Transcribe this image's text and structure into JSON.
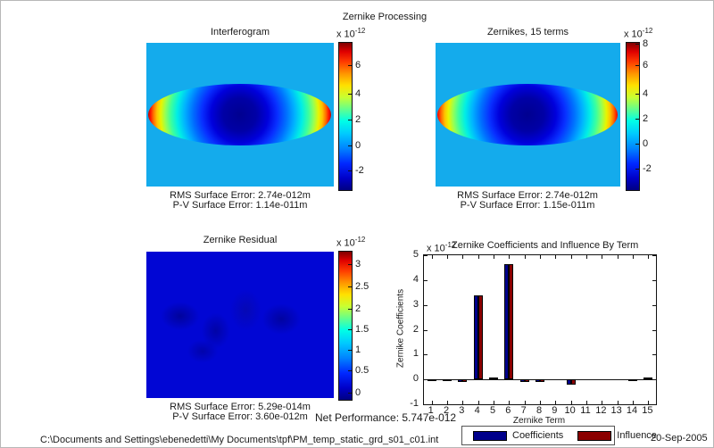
{
  "figure": {
    "title": "Zernike Processing",
    "net_performance": "Net Performance: 5.747e-012",
    "file_path": "C:\\Documents and Settings\\ebenedetti\\My Documents\\tpf\\PM_temp_static_grd_s01_c01.int",
    "date": "20-Sep-2005"
  },
  "colors": {
    "map_background": "#14abec",
    "residual_blue": "#0106d4",
    "coefficients_bar": "#00008b",
    "influence_bar": "#8b0000"
  },
  "panels": {
    "interferogram": {
      "title": "Interferogram",
      "rms": "RMS Surface Error: 2.74e-012m",
      "pv": "P-V Surface Error: 1.14e-011m",
      "colorbar": {
        "exp_base": "x 10",
        "exp_power": "-12",
        "ticks": [
          {
            "label": "6",
            "pos": 16
          },
          {
            "label": "4",
            "pos": 35
          },
          {
            "label": "2",
            "pos": 53
          },
          {
            "label": "0",
            "pos": 70
          },
          {
            "label": "-2",
            "pos": 87
          }
        ]
      }
    },
    "zernikes": {
      "title": "Zernikes, 15 terms",
      "rms": "RMS Surface Error: 2.74e-012m",
      "pv": "P-V Surface Error: 1.15e-011m",
      "colorbar": {
        "exp_base": "x 10",
        "exp_power": "-12",
        "ticks": [
          {
            "label": "8",
            "pos": 1
          },
          {
            "label": "6",
            "pos": 16
          },
          {
            "label": "4",
            "pos": 35
          },
          {
            "label": "2",
            "pos": 52
          },
          {
            "label": "0",
            "pos": 69
          },
          {
            "label": "-2",
            "pos": 86
          }
        ]
      }
    },
    "residual": {
      "title": "Zernike Residual",
      "rms": "RMS Surface Error: 5.29e-014m",
      "pv": "P-V Surface Error: 3.60e-012m",
      "colorbar": {
        "exp_base": "x 10",
        "exp_power": "-12",
        "ticks": [
          {
            "label": "3",
            "pos": 9
          },
          {
            "label": "2.5",
            "pos": 24
          },
          {
            "label": "2",
            "pos": 39
          },
          {
            "label": "1.5",
            "pos": 53
          },
          {
            "label": "1",
            "pos": 67
          },
          {
            "label": "0.5",
            "pos": 81
          },
          {
            "label": "0",
            "pos": 96
          }
        ]
      }
    }
  },
  "chart_data": {
    "type": "bar",
    "title": "Zernike Coefficients and Influence By Term",
    "exp_base": "x 10",
    "exp_power": "-12",
    "xlabel": "Zernike Term",
    "ylabel": "Zernike Coefficients",
    "categories": [
      "1",
      "2",
      "3",
      "4",
      "5",
      "6",
      "7",
      "8",
      "9",
      "10",
      "11",
      "12",
      "13",
      "14",
      "15"
    ],
    "series": [
      {
        "name": "Coefficients",
        "color": "#00008b",
        "values": [
          -0.06,
          -0.06,
          -0.12,
          3.38,
          0.09,
          4.65,
          -0.12,
          -0.12,
          0,
          -0.2,
          0,
          0,
          0,
          -0.05,
          0.06
        ]
      },
      {
        "name": "Influence",
        "color": "#8b0000",
        "values": [
          -0.06,
          -0.06,
          -0.12,
          3.38,
          0.09,
          4.65,
          -0.12,
          -0.12,
          0,
          -0.2,
          0,
          0,
          0,
          -0.05,
          0.06
        ]
      }
    ],
    "ylim": [
      -1,
      5
    ],
    "yticks": [
      -1,
      0,
      1,
      2,
      3,
      4,
      5
    ],
    "grid": false,
    "legend_position": "below"
  }
}
